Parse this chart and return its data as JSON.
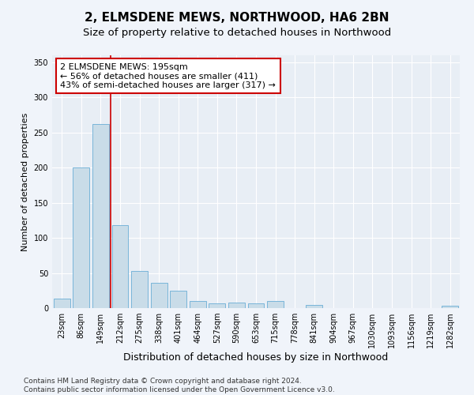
{
  "title": "2, ELMSDENE MEWS, NORTHWOOD, HA6 2BN",
  "subtitle": "Size of property relative to detached houses in Northwood",
  "xlabel": "Distribution of detached houses by size in Northwood",
  "ylabel": "Number of detached properties",
  "bar_color": "#c9dce8",
  "bar_edge_color": "#6aaed6",
  "background_color": "#e8eef5",
  "grid_color": "#ffffff",
  "categories": [
    "23sqm",
    "86sqm",
    "149sqm",
    "212sqm",
    "275sqm",
    "338sqm",
    "401sqm",
    "464sqm",
    "527sqm",
    "590sqm",
    "653sqm",
    "715sqm",
    "778sqm",
    "841sqm",
    "904sqm",
    "967sqm",
    "1030sqm",
    "1093sqm",
    "1156sqm",
    "1219sqm",
    "1282sqm"
  ],
  "values": [
    13,
    200,
    262,
    118,
    53,
    36,
    25,
    10,
    7,
    8,
    7,
    10,
    0,
    4,
    0,
    0,
    0,
    0,
    0,
    0,
    3
  ],
  "vline_x": 2.5,
  "annotation_text": "2 ELMSDENE MEWS: 195sqm\n← 56% of detached houses are smaller (411)\n43% of semi-detached houses are larger (317) →",
  "annotation_box_color": "#ffffff",
  "annotation_box_edge": "#cc0000",
  "vline_color": "#cc0000",
  "ylim": [
    0,
    360
  ],
  "yticks": [
    0,
    50,
    100,
    150,
    200,
    250,
    300,
    350
  ],
  "footer_text": "Contains HM Land Registry data © Crown copyright and database right 2024.\nContains public sector information licensed under the Open Government Licence v3.0.",
  "title_fontsize": 11,
  "subtitle_fontsize": 9.5,
  "xlabel_fontsize": 9,
  "ylabel_fontsize": 8,
  "tick_fontsize": 7,
  "annotation_fontsize": 8,
  "footer_fontsize": 6.5
}
